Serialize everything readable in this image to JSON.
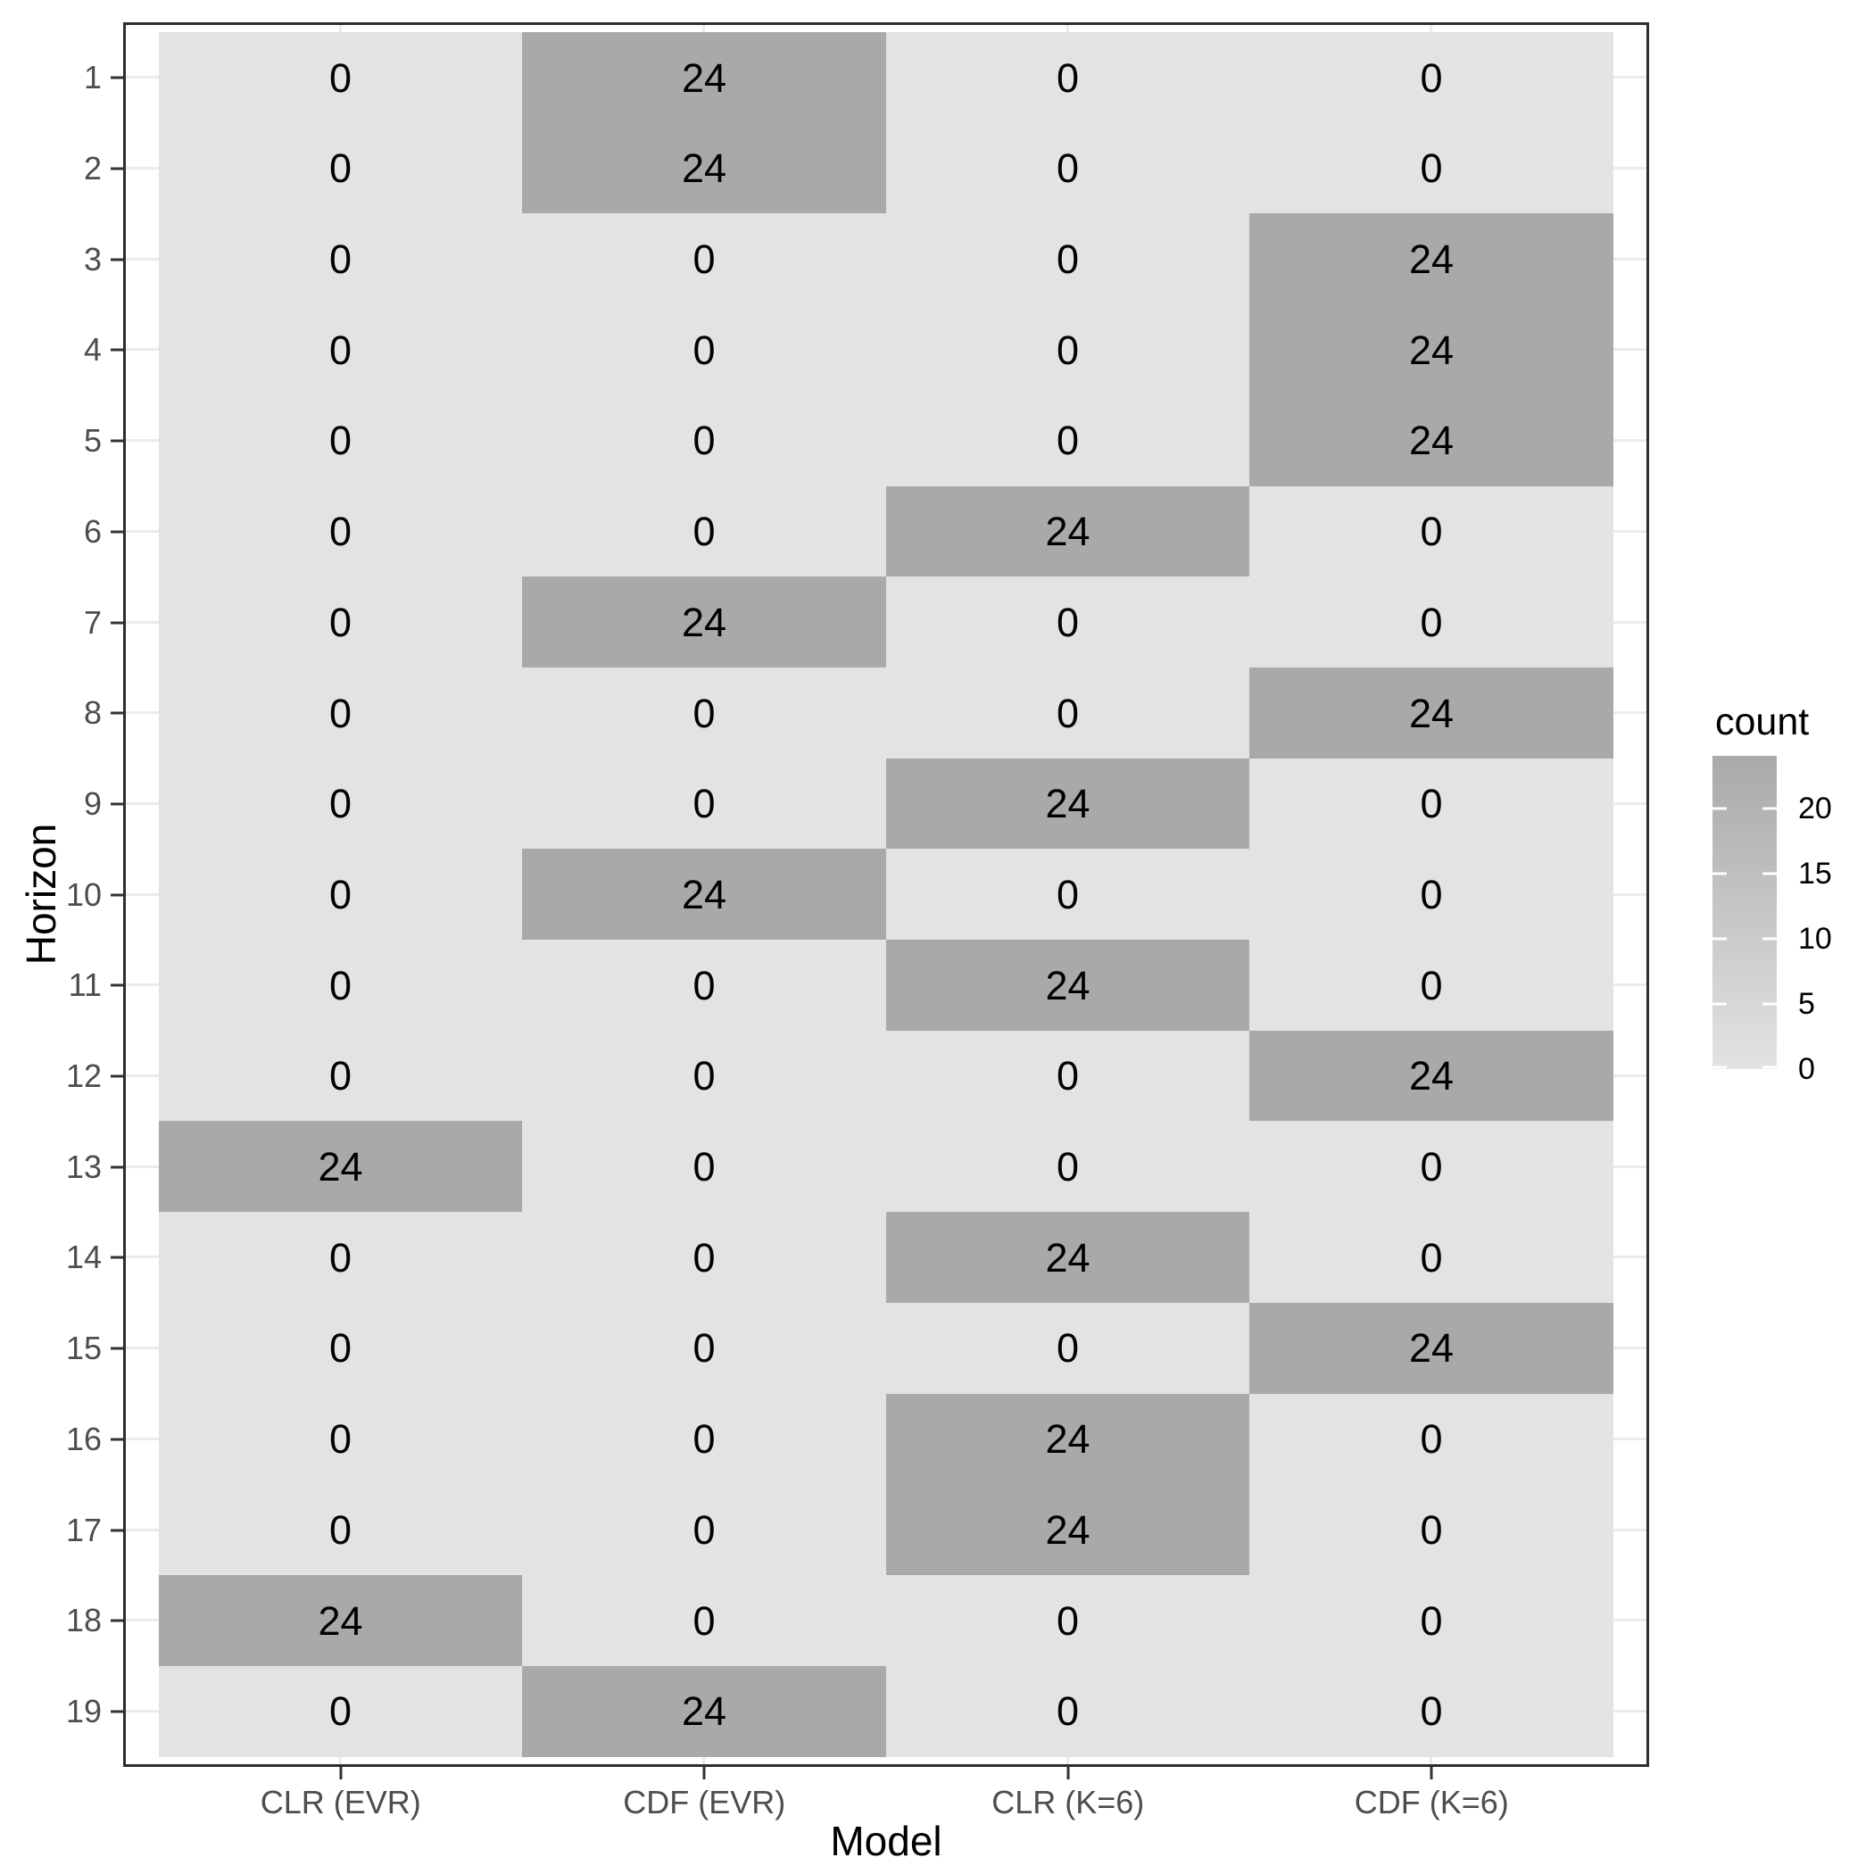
{
  "chart_data": {
    "type": "heatmap",
    "title": "",
    "xlabel": "Model",
    "ylabel": "Horizon",
    "x_categories": [
      "CLR (EVR)",
      "CDF (EVR)",
      "CLR (K=6)",
      "CDF (K=6)"
    ],
    "y_categories": [
      "1",
      "2",
      "3",
      "4",
      "5",
      "6",
      "7",
      "8",
      "9",
      "10",
      "11",
      "12",
      "13",
      "14",
      "15",
      "16",
      "17",
      "18",
      "19"
    ],
    "y_axis_order": "1 at top, 19 at bottom",
    "values": [
      [
        0,
        24,
        0,
        0
      ],
      [
        0,
        24,
        0,
        0
      ],
      [
        0,
        0,
        0,
        24
      ],
      [
        0,
        0,
        0,
        24
      ],
      [
        0,
        0,
        0,
        24
      ],
      [
        0,
        0,
        24,
        0
      ],
      [
        0,
        24,
        0,
        0
      ],
      [
        0,
        0,
        0,
        24
      ],
      [
        0,
        0,
        24,
        0
      ],
      [
        0,
        24,
        0,
        0
      ],
      [
        0,
        0,
        24,
        0
      ],
      [
        0,
        0,
        0,
        24
      ],
      [
        24,
        0,
        0,
        0
      ],
      [
        0,
        0,
        24,
        0
      ],
      [
        0,
        0,
        0,
        24
      ],
      [
        0,
        0,
        24,
        0
      ],
      [
        0,
        0,
        24,
        0
      ],
      [
        24,
        0,
        0,
        0
      ],
      [
        0,
        24,
        0,
        0
      ]
    ],
    "cell_labels_shown": true,
    "fill_domain": [
      0,
      24
    ],
    "fill_low": "#e3e3e3",
    "fill_high": "#a9a9a9",
    "legend": {
      "title": "count",
      "position": "right",
      "tick_values": [
        20,
        15,
        10,
        5,
        0
      ],
      "tick_labels": [
        "20",
        "15",
        "10",
        "5",
        "0"
      ]
    },
    "grid": "major gridlines at category centers, visible in panel margins",
    "style": {
      "panel_background": "#ffffff",
      "panel_border": "#2d2d2d",
      "gridline_color": "#ebebeb",
      "axis_text_color": "#4d4d4d",
      "axis_title_color": "#000000",
      "cell_text_color": "#000000",
      "legend_text_color": "#000000"
    }
  }
}
